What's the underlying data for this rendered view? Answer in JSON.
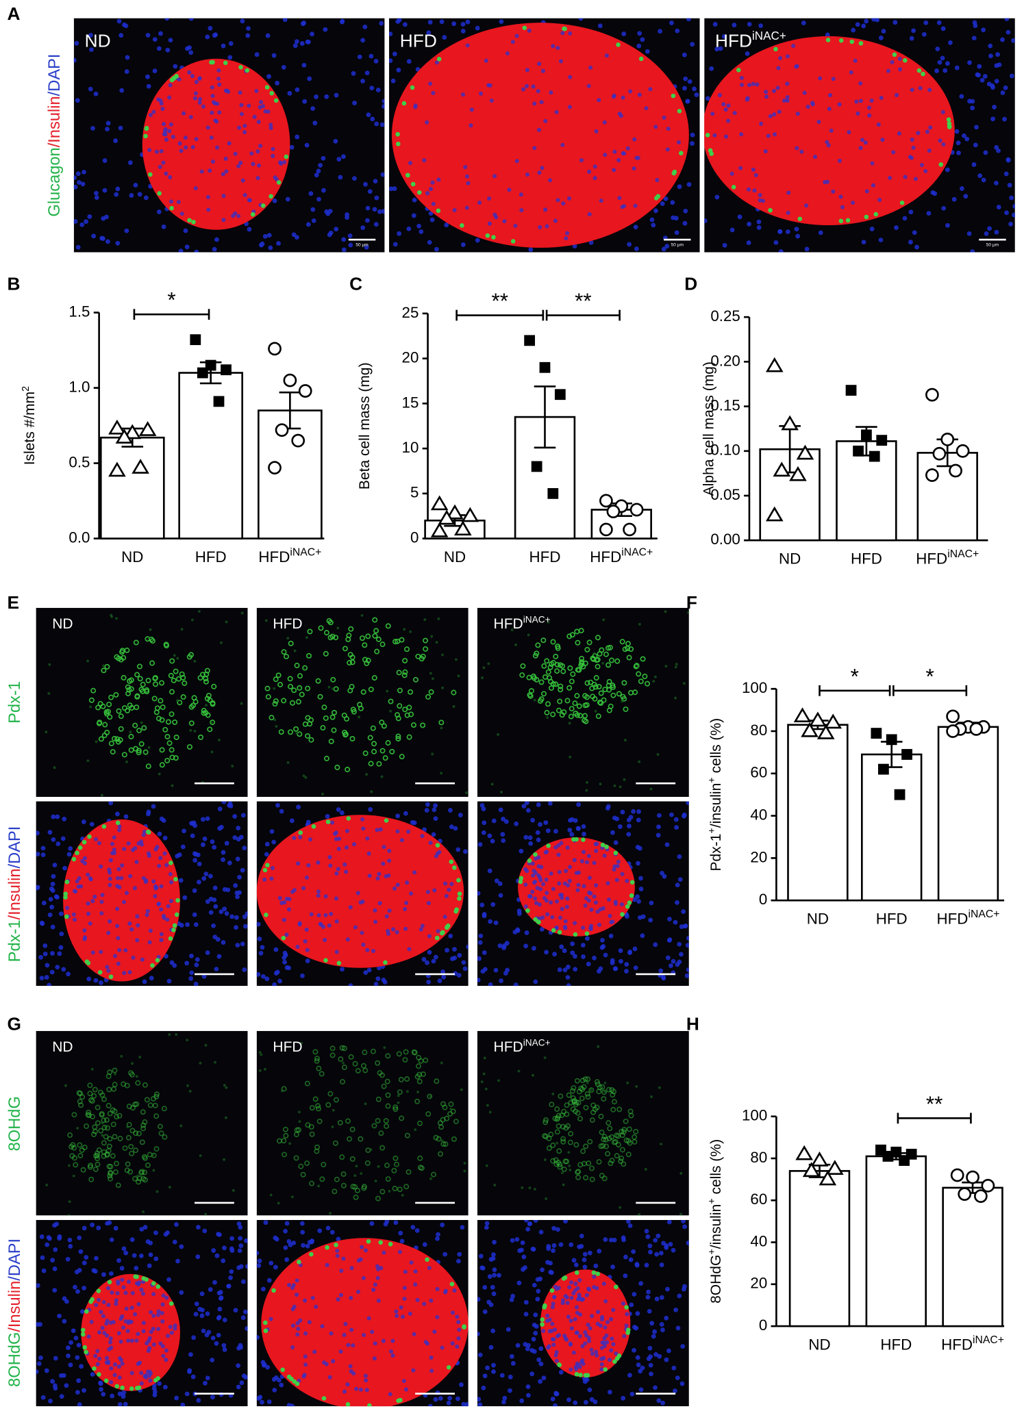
{
  "panel_letters": [
    "A",
    "B",
    "C",
    "D",
    "E",
    "F",
    "G",
    "H"
  ],
  "conditions": [
    {
      "text": "ND"
    },
    {
      "text": "HFD"
    },
    {
      "text": "HFD",
      "sup": "iNAC+"
    }
  ],
  "stain_labels": [
    [
      {
        "text": "Glucagon",
        "color": "#22b34a"
      },
      {
        "text": "/Insulin",
        "color": "#e3202a"
      },
      {
        "text": "/DAPI",
        "color": "#2b3fc8"
      }
    ],
    [
      {
        "text": "Pdx-1",
        "color": "#22b34a"
      }
    ],
    [
      {
        "text": "Pdx-1",
        "color": "#22b34a"
      },
      {
        "text": "/Insulin",
        "color": "#e3202a"
      },
      {
        "text": "/DAPI",
        "color": "#2b3fc8"
      }
    ],
    [
      {
        "text": "8OHdG",
        "color": "#22b34a"
      }
    ],
    [
      {
        "text": "8OHdG",
        "color": "#22b34a"
      },
      {
        "text": "/Insulin",
        "color": "#e3202a"
      },
      {
        "text": "/DAPI",
        "color": "#2b3fc8"
      }
    ]
  ],
  "scale_label": "50 μm",
  "chart_data": [
    {
      "type": "bar",
      "categories": [
        "ND",
        "HFD",
        "HFD"
      ],
      "category_superscript": {
        "index": 2,
        "text": "iNAC+"
      },
      "values": [
        0.67,
        1.1,
        0.85
      ],
      "errors": [
        0.06,
        0.07,
        0.12
      ],
      "points": [
        [
          0.73,
          0.7,
          0.72,
          0.67,
          0.47,
          0.45
        ],
        [
          1.32,
          1.15,
          1.12,
          1.1,
          0.91
        ],
        [
          1.26,
          1.05,
          0.98,
          0.72,
          0.65,
          0.47
        ]
      ],
      "point_markers": [
        "triangle",
        "square",
        "circle"
      ],
      "y_label": [
        {
          "text": "Islets #/mm"
        },
        {
          "text": "2",
          "sup": true
        }
      ],
      "ylim": [
        0,
        1.5
      ],
      "yticks": [
        {
          "value": 0,
          "label": "0.0"
        },
        {
          "value": 0.5,
          "label": "0.5"
        },
        {
          "value": 1,
          "label": "1.0"
        },
        {
          "value": 1.5,
          "label": "1.5"
        }
      ],
      "significance": [
        {
          "between": [
            0,
            1
          ],
          "label": "*"
        }
      ]
    },
    {
      "type": "bar",
      "categories": [
        "ND",
        "HFD",
        "HFD"
      ],
      "category_superscript": {
        "index": 2,
        "text": "iNAC+"
      },
      "values": [
        2.0,
        13.5,
        3.2
      ],
      "errors": [
        0.6,
        3.4,
        0.7
      ],
      "points": [
        [
          3.8,
          2.8,
          2.5,
          2.2,
          1.0,
          0.8
        ],
        [
          22,
          19,
          16,
          8,
          5
        ],
        [
          4.2,
          3.6,
          3.2,
          3.0,
          1.0,
          1.0
        ]
      ],
      "point_markers": [
        "triangle",
        "square",
        "circle"
      ],
      "y_label": [
        {
          "text": "Beta cell mass (mg)"
        }
      ],
      "ylim": [
        0,
        25
      ],
      "yticks": [
        0,
        5,
        10,
        15,
        20,
        25
      ],
      "significance": [
        {
          "between": [
            0,
            1
          ],
          "label": "**"
        },
        {
          "between": [
            1,
            2
          ],
          "label": "**"
        }
      ]
    },
    {
      "type": "bar",
      "categories": [
        "ND",
        "HFD",
        "HFD"
      ],
      "category_superscript": {
        "index": 2,
        "text": "iNAC+"
      },
      "values": [
        0.102,
        0.111,
        0.098
      ],
      "errors": [
        0.026,
        0.016,
        0.015
      ],
      "points": [
        [
          0.195,
          0.13,
          0.097,
          0.078,
          0.073,
          0.028
        ],
        [
          0.168,
          0.118,
          0.112,
          0.1,
          0.094
        ],
        [
          0.163,
          0.113,
          0.1,
          0.097,
          0.078,
          0.073
        ]
      ],
      "point_markers": [
        "triangle",
        "square",
        "circle"
      ],
      "y_label": [
        {
          "text": "Alpha cell mass (mg)"
        }
      ],
      "ylim": [
        0,
        0.25
      ],
      "yticks": [
        {
          "value": 0,
          "label": "0.00"
        },
        {
          "value": 0.05,
          "label": "0.05"
        },
        {
          "value": 0.1,
          "label": "0.10"
        },
        {
          "value": 0.15,
          "label": "0.15"
        },
        {
          "value": 0.2,
          "label": "0.20"
        },
        {
          "value": 0.25,
          "label": "0.25"
        }
      ],
      "significance": []
    },
    {
      "type": "bar",
      "categories": [
        "ND",
        "HFD",
        "HFD"
      ],
      "category_superscript": {
        "index": 2,
        "text": "iNAC+"
      },
      "values": [
        83,
        69,
        82
      ],
      "errors": [
        2,
        6,
        2
      ],
      "points": [
        [
          87,
          85,
          84,
          80,
          79
        ],
        [
          79,
          76,
          69,
          62,
          50
        ],
        [
          87,
          82,
          82,
          81,
          81,
          80
        ]
      ],
      "point_markers": [
        "triangle",
        "square",
        "circle"
      ],
      "y_label": [
        {
          "text": "Pdx-1"
        },
        {
          "text": "+",
          "sup": true
        },
        {
          "text": "/insulin"
        },
        {
          "text": "+",
          "sup": true
        },
        {
          "text": " cells (%)"
        }
      ],
      "ylim": [
        0,
        100
      ],
      "yticks": [
        0,
        20,
        40,
        60,
        80,
        100
      ],
      "significance": [
        {
          "between": [
            0,
            1
          ],
          "label": "*"
        },
        {
          "between": [
            1,
            2
          ],
          "label": "*"
        }
      ]
    },
    {
      "type": "bar",
      "categories": [
        "ND",
        "HFD",
        "HFD"
      ],
      "category_superscript": {
        "index": 2,
        "text": "iNAC+"
      },
      "values": [
        74,
        81,
        66
      ],
      "errors": [
        3,
        1.5,
        2.5
      ],
      "points": [
        [
          82,
          79,
          75,
          74,
          70
        ],
        [
          84,
          83,
          82,
          81,
          79
        ],
        [
          72,
          71,
          67,
          63,
          62
        ]
      ],
      "point_markers": [
        "triangle",
        "square",
        "circle"
      ],
      "y_label": [
        {
          "text": "8OHdG"
        },
        {
          "text": "+",
          "sup": true
        },
        {
          "text": "/insulin"
        },
        {
          "text": "+",
          "sup": true
        },
        {
          "text": " cells (%)"
        }
      ],
      "ylim": [
        0,
        100
      ],
      "yticks": [
        0,
        20,
        40,
        60,
        80,
        100
      ],
      "significance": [
        {
          "between": [
            1,
            2
          ],
          "label": "**"
        }
      ]
    }
  ]
}
